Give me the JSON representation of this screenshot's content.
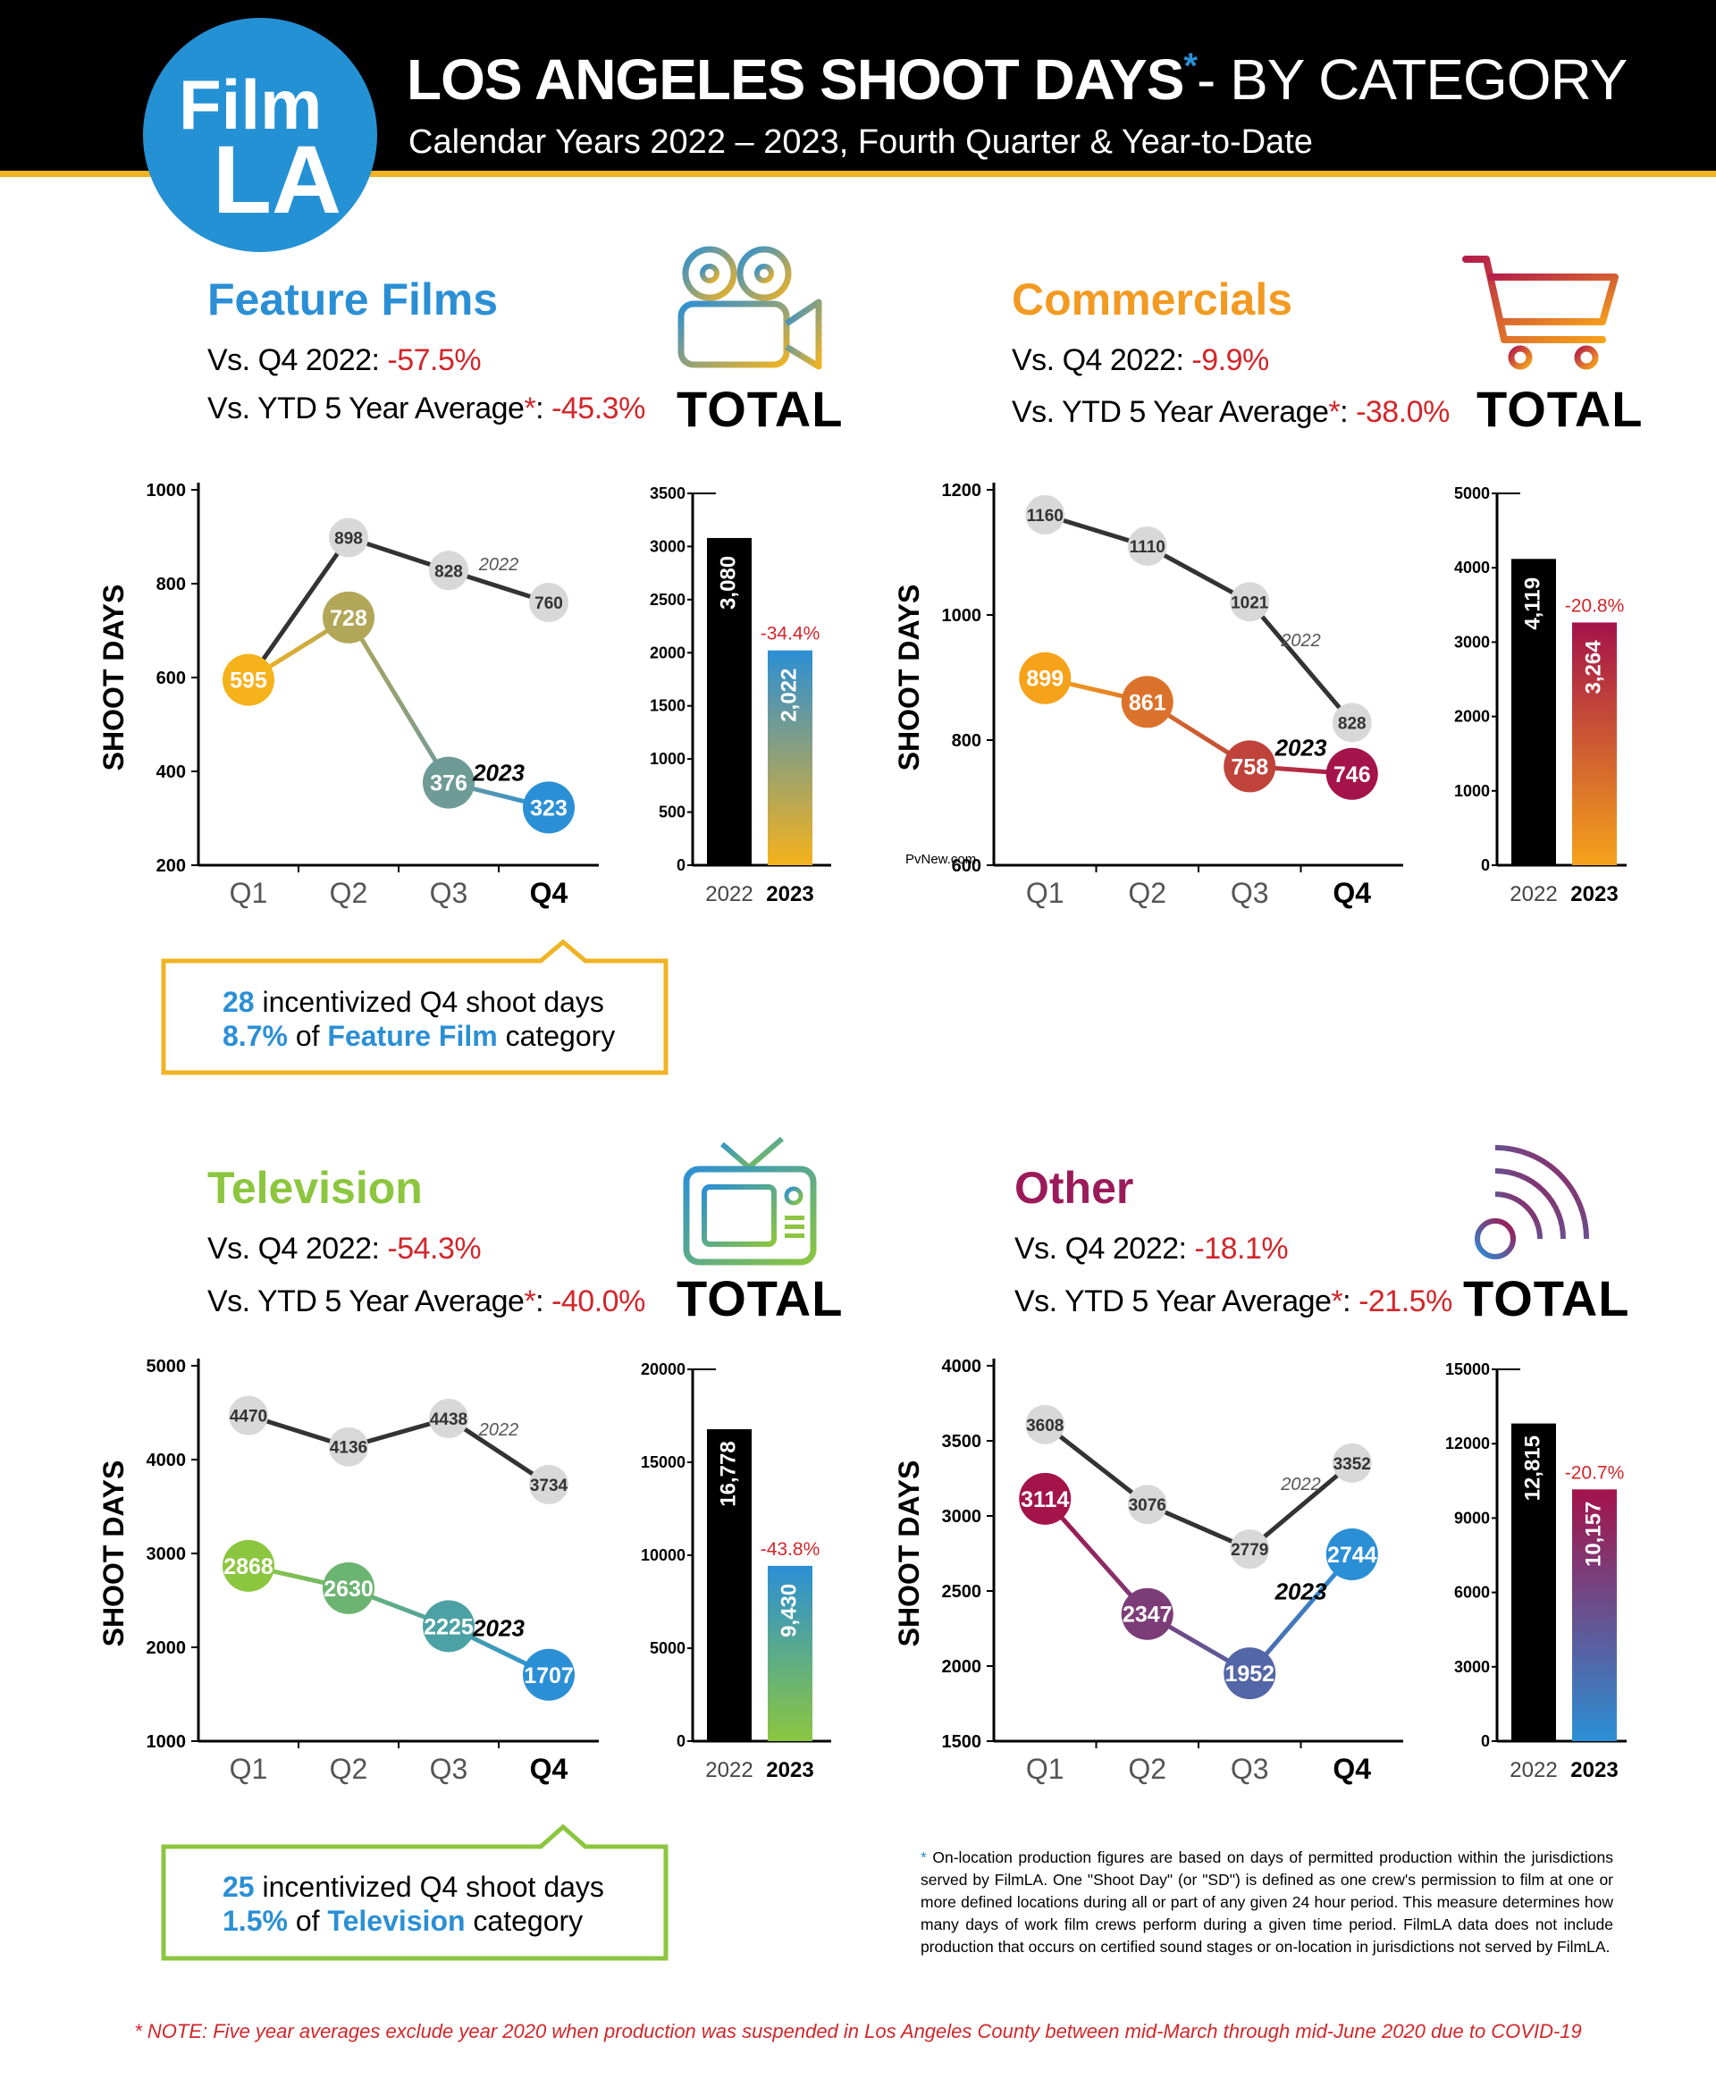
{
  "header": {
    "title_main": "LOS ANGELES SHOOT DAYS",
    "title_asterisk": "*",
    "title_suffix": "- BY CATEGORY",
    "subtitle": "Calendar Years 2022 – 2023, Fourth Quarter & Year-to-Date",
    "logo_line1": "Film",
    "logo_line2": "LA"
  },
  "sections": [
    {
      "id": "feature",
      "title": "Feature Films",
      "title_color": "#2b8fd5",
      "stat1_label": "Vs. Q4 2022: ",
      "stat1_value": "-57.5%",
      "stat2_label": "Vs. YTD 5 Year Average",
      "stat2_ast": "*",
      "stat2_colon": ": ",
      "stat2_value": "-45.3%",
      "total_label": "TOTAL",
      "icon": "film-camera-icon"
    },
    {
      "id": "commercials",
      "title": "Commercials",
      "title_color": "#f39a22",
      "stat1_label": "Vs. Q4 2022: ",
      "stat1_value": "-9.9%",
      "stat2_label": "Vs. YTD 5 Year Average",
      "stat2_ast": "*",
      "stat2_colon": ":  ",
      "stat2_value": "-38.0%",
      "total_label": "TOTAL",
      "icon": "shopping-cart-icon"
    },
    {
      "id": "television",
      "title": "Television",
      "title_color": "#8cc63f",
      "stat1_label": "Vs. Q4 2022:  ",
      "stat1_value": "-54.3%",
      "stat2_label": "Vs. YTD 5 Year Average",
      "stat2_ast": "*",
      "stat2_colon": ":  ",
      "stat2_value": "-40.0%",
      "total_label": "TOTAL",
      "icon": "tv-icon"
    },
    {
      "id": "other",
      "title": "Other",
      "title_color": "#9b1b5a",
      "stat1_label": "Vs. Q4 2022: ",
      "stat1_value": "-18.1%",
      "stat2_label": "Vs. YTD 5 Year Average",
      "stat2_ast": "*",
      "stat2_colon": ":  ",
      "stat2_value": "-21.5%",
      "total_label": "TOTAL",
      "icon": "signal-icon"
    }
  ],
  "callouts": [
    {
      "num": "28",
      "line1_rest": " incentivized Q4 shoot days",
      "pct": "8.7%",
      "of": " of ",
      "cat": "Feature Film",
      "cat_rest": " category",
      "color": "#f0b323"
    },
    {
      "num": "25",
      "line1_rest": " incentivized Q4 shoot days",
      "pct": "1.5%",
      "of": " of ",
      "cat": "Television",
      "cat_rest": " category",
      "color": "#8cc63f"
    }
  ],
  "chart_data": [
    {
      "id": "feature-line",
      "type": "line",
      "ylabel": "SHOOT DAYS",
      "categories": [
        "Q1",
        "Q2",
        "Q3",
        "Q4"
      ],
      "ylim": [
        200,
        1000
      ],
      "yticks": [
        200,
        400,
        600,
        800,
        1000
      ],
      "series": [
        {
          "name": "2022",
          "values": [
            594,
            898,
            828,
            760
          ]
        },
        {
          "name": "2023",
          "values": [
            595,
            728,
            376,
            323
          ]
        }
      ],
      "grad": [
        "#f6b21b",
        "#2b8fd5"
      ]
    },
    {
      "id": "feature-bar",
      "type": "bar",
      "categories": [
        "2022",
        "2023"
      ],
      "values": [
        3080,
        2022
      ],
      "value_labels": [
        "3,080",
        "2,022"
      ],
      "ylim": [
        0,
        3500
      ],
      "yticks": [
        0,
        500,
        1000,
        1500,
        2000,
        2500,
        3000,
        3500
      ],
      "change": "-34.4%",
      "grad": [
        "#f6b21b",
        "#2b8fd5"
      ]
    },
    {
      "id": "commercials-line",
      "type": "line",
      "ylabel": "SHOOT DAYS",
      "categories": [
        "Q1",
        "Q2",
        "Q3",
        "Q4"
      ],
      "ylim": [
        600,
        1200
      ],
      "yticks": [
        600,
        800,
        1000,
        1200
      ],
      "series": [
        {
          "name": "2022",
          "values": [
            1160,
            1110,
            1021,
            828
          ]
        },
        {
          "name": "2023",
          "values": [
            899,
            861,
            758,
            746
          ]
        }
      ],
      "grad": [
        "#f6a21b",
        "#a4134a"
      ]
    },
    {
      "id": "commercials-bar",
      "type": "bar",
      "categories": [
        "2022",
        "2023"
      ],
      "values": [
        4119,
        3264
      ],
      "value_labels": [
        "4,119",
        "3,264"
      ],
      "ylim": [
        0,
        5000
      ],
      "yticks": [
        0,
        1000,
        2000,
        3000,
        4000,
        5000
      ],
      "change": "-20.8%",
      "grad": [
        "#f6a21b",
        "#a4134a"
      ]
    },
    {
      "id": "television-line",
      "type": "line",
      "ylabel": "SHOOT DAYS",
      "categories": [
        "Q1",
        "Q2",
        "Q3",
        "Q4"
      ],
      "ylim": [
        1000,
        5000
      ],
      "yticks": [
        1000,
        2000,
        3000,
        4000,
        5000
      ],
      "series": [
        {
          "name": "2022",
          "values": [
            4470,
            4136,
            4438,
            3734
          ]
        },
        {
          "name": "2023",
          "values": [
            2868,
            2630,
            2225,
            1707
          ]
        }
      ],
      "grad": [
        "#8cc63f",
        "#2b8fd5"
      ]
    },
    {
      "id": "television-bar",
      "type": "bar",
      "categories": [
        "2022",
        "2023"
      ],
      "values": [
        16778,
        9430
      ],
      "value_labels": [
        "16,778",
        "9,430"
      ],
      "ylim": [
        0,
        20000
      ],
      "yticks": [
        0,
        5000,
        10000,
        15000,
        20000
      ],
      "change": "-43.8%",
      "grad": [
        "#8cc63f",
        "#2b8fd5"
      ]
    },
    {
      "id": "other-line",
      "type": "line",
      "ylabel": "SHOOT DAYS",
      "categories": [
        "Q1",
        "Q2",
        "Q3",
        "Q4"
      ],
      "ylim": [
        1500,
        4000
      ],
      "yticks": [
        1500,
        2000,
        2500,
        3000,
        3500,
        4000
      ],
      "series": [
        {
          "name": "2022",
          "values": [
            3608,
            3076,
            2779,
            3352
          ]
        },
        {
          "name": "2023",
          "values": [
            3114,
            2347,
            1952,
            2744
          ]
        }
      ],
      "grad": [
        "#a4134a",
        "#2b8fd5"
      ]
    },
    {
      "id": "other-bar",
      "type": "bar",
      "categories": [
        "2022",
        "2023"
      ],
      "values": [
        12815,
        10157
      ],
      "value_labels": [
        "12,815",
        "10,157"
      ],
      "ylim": [
        0,
        15000
      ],
      "yticks": [
        0,
        3000,
        6000,
        9000,
        12000,
        15000
      ],
      "change": "-20.7%",
      "grad": [
        "#2b8fd5",
        "#a4134a"
      ]
    }
  ],
  "footnote": {
    "ast": "*",
    "text": "On-location production figures are based on days of permitted production within the jurisdictions served by FilmLA. One \"Shoot Day\" (or \"SD\") is defined as one crew's permission to film at one or more defined locations during all or part of any given 24 hour period. This measure determines how many days of work film crews perform during a given time period. FilmLA data does not include production that occurs on certified sound stages or on-location in jurisdictions not served by FilmLA."
  },
  "note": "* NOTE: Five year averages exclude year 2020 when production was suspended in Los Angeles County between mid-March through mid-June 2020 due to COVID-19",
  "watermark": "PvNew.com"
}
